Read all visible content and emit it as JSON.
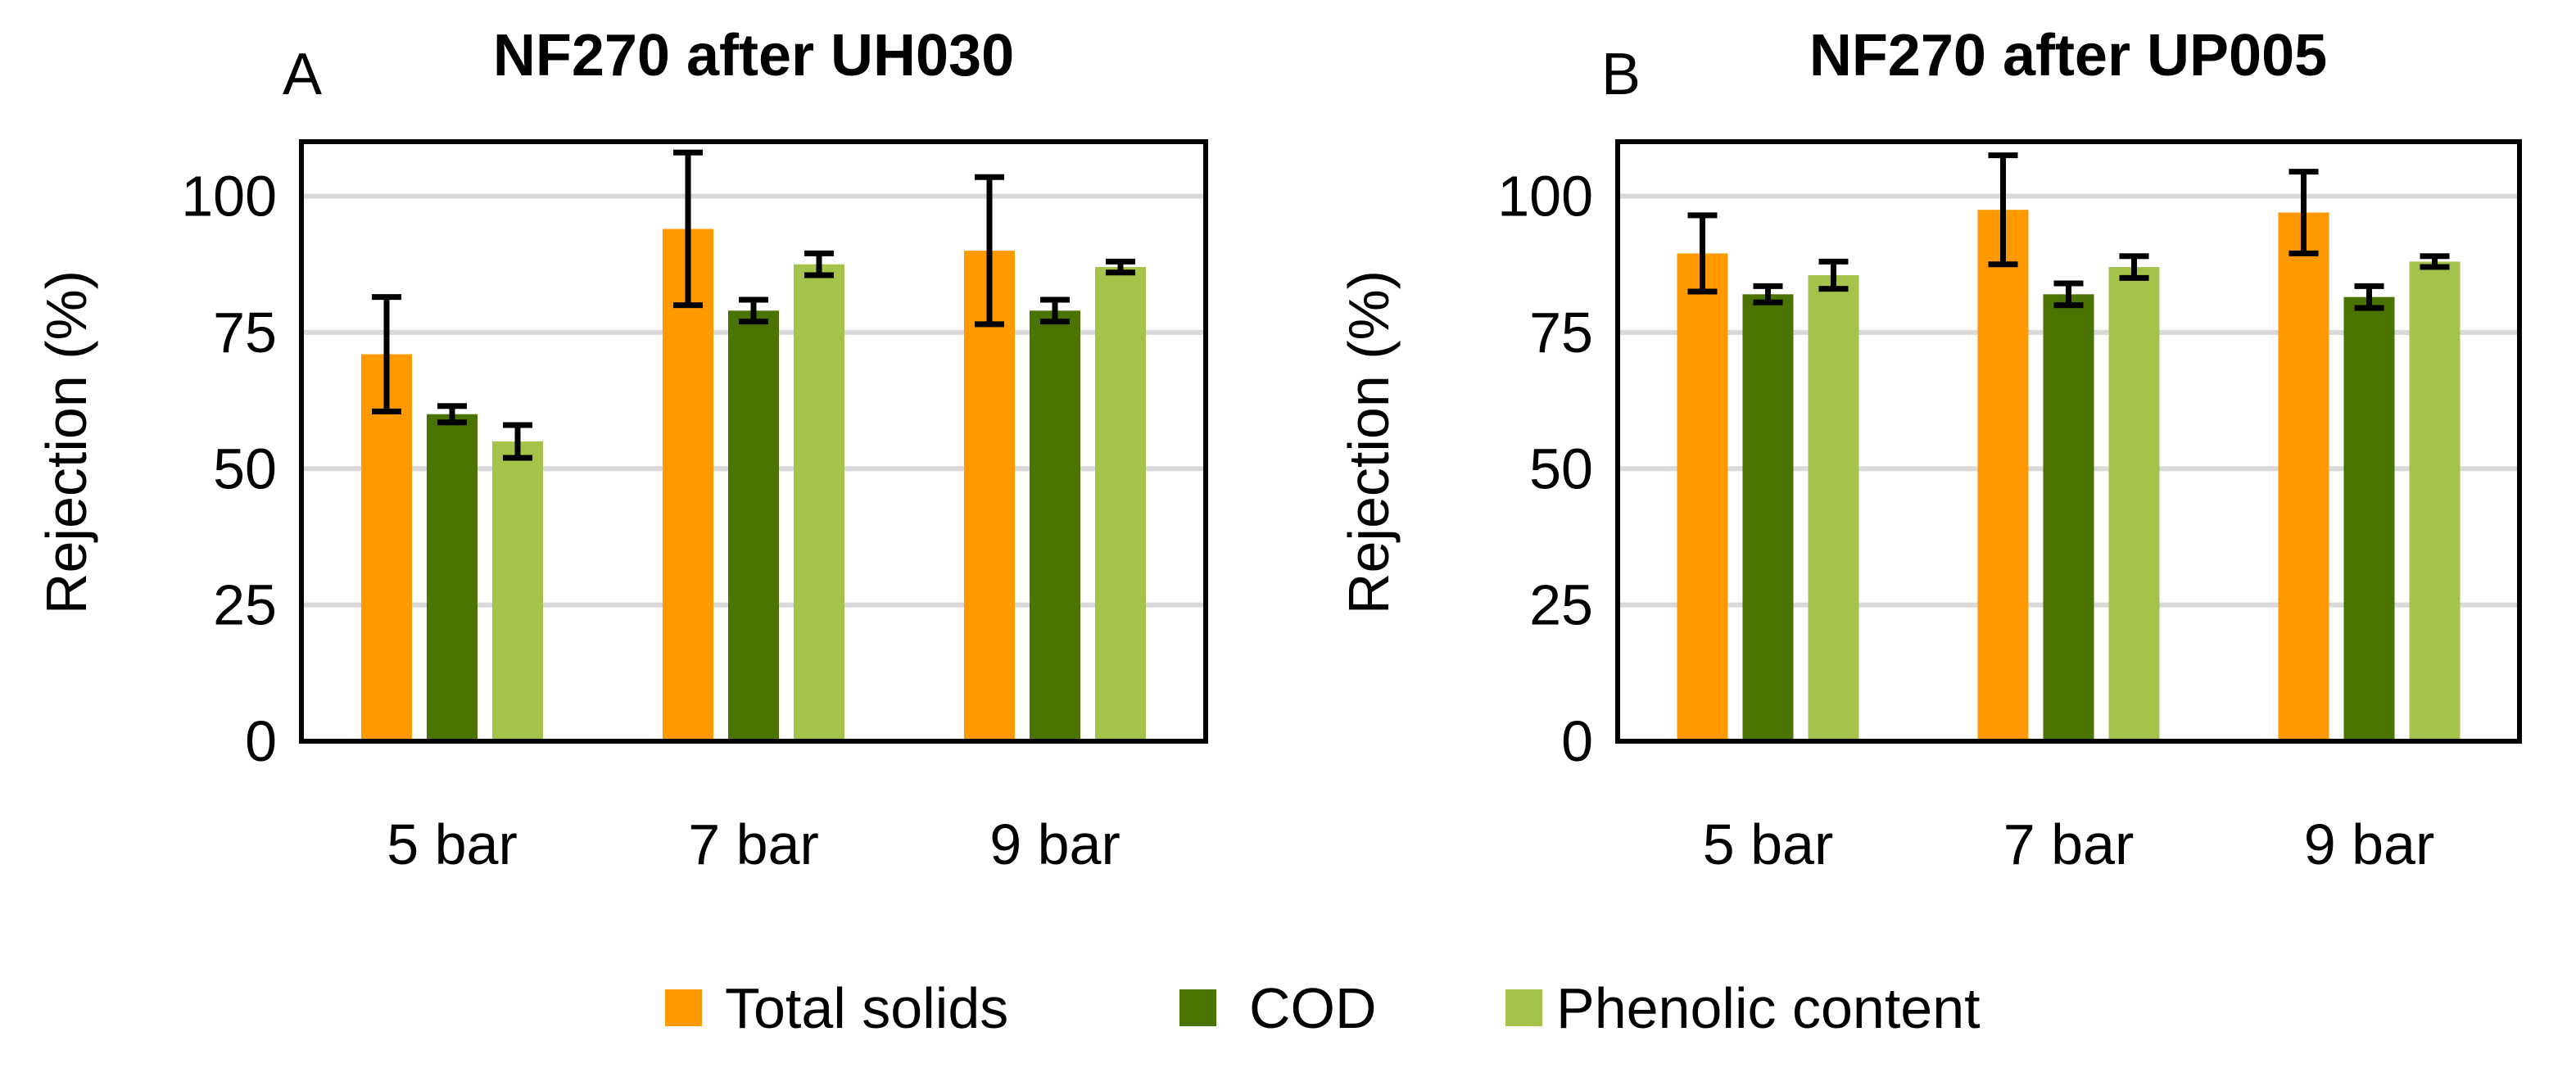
{
  "colors": {
    "total_solids": "#FF9900",
    "cod": "#4A7300",
    "phenolic": "#A5C34B",
    "grid": "#D9D9D9",
    "axis": "#000000",
    "error_bar": "#000000"
  },
  "legend": {
    "items": [
      {
        "label": "Total solids"
      },
      {
        "label": "COD"
      },
      {
        "label": "Phenolic content"
      }
    ]
  },
  "chart_data": [
    {
      "type": "bar",
      "panel_label": "A",
      "title": "NF270 after UH030",
      "xlabel": "",
      "ylabel": "Rejection (%)",
      "ylim": [
        0,
        110
      ],
      "yticks": [
        0,
        25,
        50,
        75,
        100
      ],
      "grid": true,
      "categories": [
        "5 bar",
        "7 bar",
        "9 bar"
      ],
      "series": [
        {
          "name": "Total solids",
          "values": [
            71,
            94,
            90
          ],
          "errors": [
            10.5,
            14,
            13.5
          ]
        },
        {
          "name": "COD",
          "values": [
            60,
            79,
            79
          ],
          "errors": [
            1.5,
            2,
            2
          ]
        },
        {
          "name": "Phenolic content",
          "values": [
            55,
            87.5,
            87
          ],
          "errors": [
            3,
            2,
            1
          ]
        }
      ]
    },
    {
      "type": "bar",
      "panel_label": "B",
      "title": "NF270 after UP005",
      "xlabel": "",
      "ylabel": "Rejection (%)",
      "ylim": [
        0,
        110
      ],
      "yticks": [
        0,
        25,
        50,
        75,
        100
      ],
      "grid": true,
      "categories": [
        "5 bar",
        "7 bar",
        "9 bar"
      ],
      "series": [
        {
          "name": "Total solids",
          "values": [
            89.5,
            97.5,
            97
          ],
          "errors": [
            7,
            10,
            7.5
          ]
        },
        {
          "name": "COD",
          "values": [
            82,
            82,
            81.5
          ],
          "errors": [
            1.5,
            2,
            2
          ]
        },
        {
          "name": "Phenolic content",
          "values": [
            85.5,
            87,
            88
          ],
          "errors": [
            2.5,
            2,
            1
          ]
        }
      ]
    }
  ]
}
